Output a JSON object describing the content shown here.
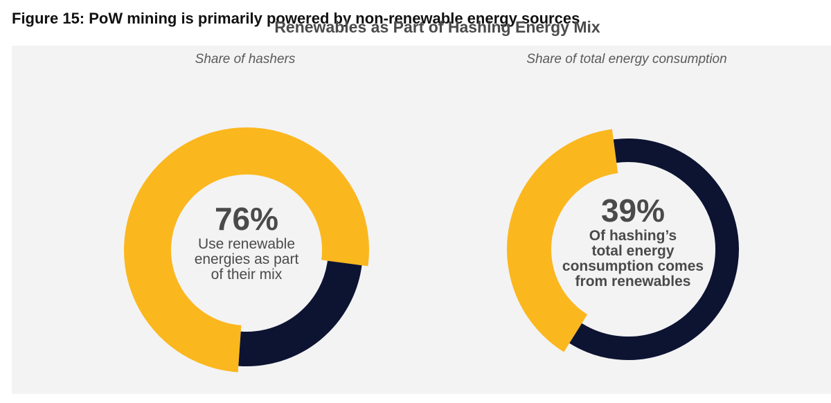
{
  "figure_title": "Figure 15: PoW mining is primarily powered by non-renewable energy sources",
  "colors": {
    "renewable": "#fbb71e",
    "non_renewable": "#0d1432",
    "panel": "#f3f3f4"
  },
  "chart_data": [
    {
      "type": "pie",
      "title": "Renewables as Part of Hashing Energy Mix",
      "subtitle": "Share of hashers",
      "values": [
        76,
        24
      ],
      "center_value": "76%",
      "center_text": [
        "Use renewable",
        "energies as part",
        "of their mix"
      ]
    },
    {
      "type": "pie",
      "title": "Renewables as Part of Hashing Energy Mix",
      "subtitle": "Share of total energy consumption",
      "values": [
        39,
        61
      ],
      "center_value": "39%",
      "center_text": [
        "Of hashing’s",
        "total energy",
        "consumption comes",
        "from renewables"
      ]
    }
  ]
}
